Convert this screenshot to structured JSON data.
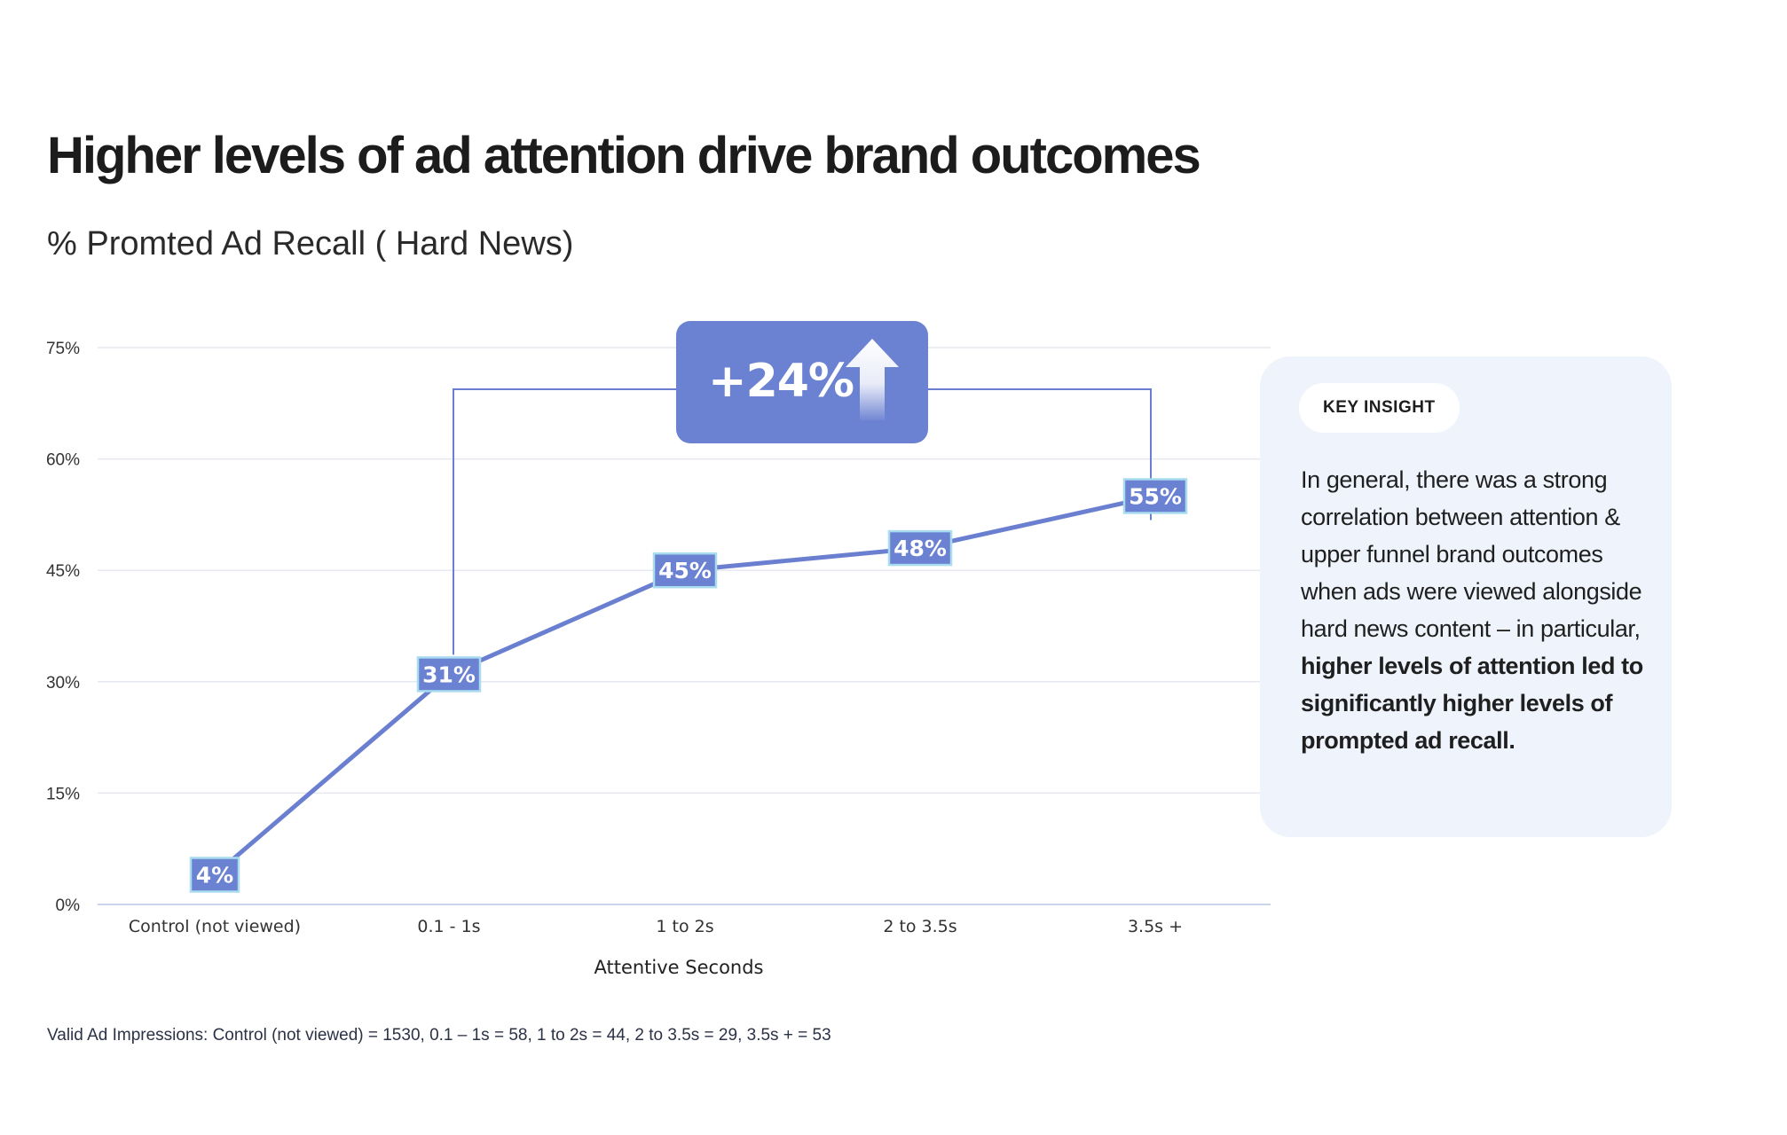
{
  "title": "Higher levels of ad attention drive brand outcomes",
  "subtitle": "% Promted Ad Recall ( Hard News)",
  "chart_data": {
    "type": "line",
    "categories": [
      "Control (not viewed)",
      "0.1 - 1s",
      "1 to 2s",
      "2 to 3.5s",
      "3.5s +"
    ],
    "values": [
      4,
      31,
      45,
      48,
      55
    ],
    "data_labels": [
      "4%",
      "31%",
      "45%",
      "48%",
      "55%"
    ],
    "xlabel": "Attentive Seconds",
    "ylabel": "",
    "ylim": [
      0,
      75
    ],
    "yticks": [
      0,
      15,
      30,
      45,
      60,
      75
    ],
    "ytick_labels": [
      "0%",
      "15%",
      "30%",
      "45%",
      "60%",
      "75%"
    ],
    "grid": true,
    "line_color": "#6b7fd1",
    "label_fill": "#6b81d1",
    "label_border": "#a8dcee",
    "annotation": {
      "text": "+24%",
      "from_category": "0.1 - 1s",
      "to_category": "3.5s +",
      "icon": "arrow-up-icon"
    }
  },
  "insight": {
    "badge": "KEY INSIGHT",
    "text_plain": "In general, there was a strong correlation between attention & upper funnel brand outcomes when ads were viewed alongside hard news content – in particular,",
    "text_bold": "higher levels of attention led to significantly higher levels of prompted ad recall."
  },
  "footnote": "Valid Ad Impressions: Control (not viewed) = 1530, 0.1 – 1s = 58, 1 to 2s = 44, 2 to 3.5s = 29, 3.5s + = 53",
  "colors": {
    "accent": "#6b81d1",
    "insight_bg": "#eff4fc",
    "grid": "#e6e9ef",
    "axis": "#c8d4ea"
  }
}
